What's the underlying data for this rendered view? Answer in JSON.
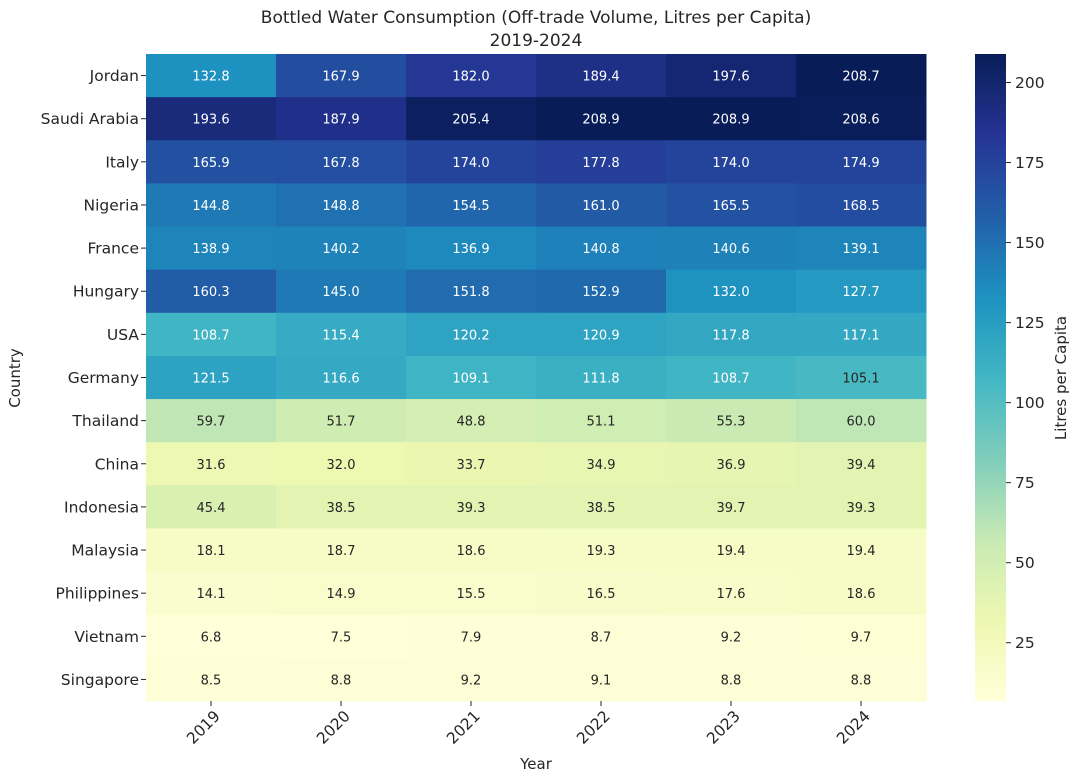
{
  "chart_data": {
    "type": "heatmap",
    "title": "Bottled Water Consumption (Off-trade Volume, Litres per Capita)",
    "subtitle": "2019-2024",
    "xlabel": "Year",
    "ylabel": "Country",
    "colorbar_label": "Litres per Capita",
    "colormap": "YlGnBu",
    "value_range": [
      6.8,
      208.9
    ],
    "colorbar_ticks": [
      25,
      50,
      75,
      100,
      125,
      150,
      175,
      200
    ],
    "x": [
      "2019",
      "2020",
      "2021",
      "2022",
      "2023",
      "2024"
    ],
    "y": [
      "Jordan",
      "Saudi Arabia",
      "Italy",
      "Nigeria",
      "France",
      "Hungary",
      "USA",
      "Germany",
      "Thailand",
      "China",
      "Indonesia",
      "Malaysia",
      "Philippines",
      "Vietnam",
      "Singapore"
    ],
    "values": [
      [
        132.8,
        167.9,
        182.0,
        189.4,
        197.6,
        208.7
      ],
      [
        193.6,
        187.9,
        205.4,
        208.9,
        208.9,
        208.6
      ],
      [
        165.9,
        167.8,
        174.0,
        177.8,
        174.0,
        174.9
      ],
      [
        144.8,
        148.8,
        154.5,
        161.0,
        165.5,
        168.5
      ],
      [
        138.9,
        140.2,
        136.9,
        140.8,
        140.6,
        139.1
      ],
      [
        160.3,
        145.0,
        151.8,
        152.9,
        132.0,
        127.7
      ],
      [
        108.7,
        115.4,
        120.2,
        120.9,
        117.8,
        117.1
      ],
      [
        121.5,
        116.6,
        109.1,
        111.8,
        108.7,
        105.1
      ],
      [
        59.7,
        51.7,
        48.8,
        51.1,
        55.3,
        60.0
      ],
      [
        31.6,
        32.0,
        33.7,
        34.9,
        36.9,
        39.4
      ],
      [
        45.4,
        38.5,
        39.3,
        38.5,
        39.7,
        39.3
      ],
      [
        18.1,
        18.7,
        18.6,
        19.3,
        19.4,
        19.4
      ],
      [
        14.1,
        14.9,
        15.5,
        16.5,
        17.6,
        18.6
      ],
      [
        6.8,
        7.5,
        7.9,
        8.7,
        9.2,
        9.7
      ],
      [
        8.5,
        8.8,
        9.2,
        9.1,
        8.8,
        8.8
      ]
    ],
    "annotation_format": "0.1f",
    "grid": false,
    "legend": "colorbar-right"
  }
}
